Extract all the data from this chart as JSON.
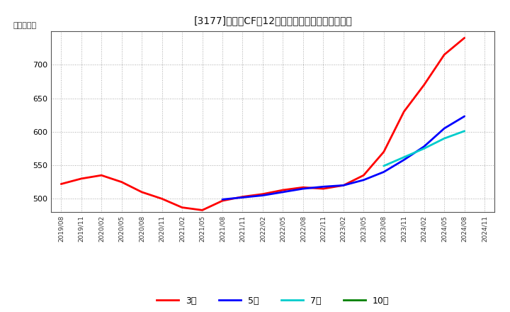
{
  "title": "[3177]　営業CFの12か月移動合計の平均値の推移",
  "ylabel": "（百万円）",
  "background_color": "#ffffff",
  "plot_bg_color": "#ffffff",
  "grid_color": "#aaaaaa",
  "ylim": [
    480,
    750
  ],
  "yticks": [
    500,
    550,
    600,
    650,
    700
  ],
  "series": {
    "3year": {
      "label": "3年",
      "color": "#ff0000",
      "dates": [
        "2019/08",
        "2019/11",
        "2020/02",
        "2020/05",
        "2020/08",
        "2020/11",
        "2021/02",
        "2021/05",
        "2021/08",
        "2021/11",
        "2022/02",
        "2022/05",
        "2022/08",
        "2022/11",
        "2023/02",
        "2023/05",
        "2023/08",
        "2023/11",
        "2024/02",
        "2024/05",
        "2024/08"
      ],
      "values": [
        522,
        530,
        535,
        525,
        510,
        500,
        487,
        483,
        497,
        503,
        507,
        513,
        517,
        515,
        520,
        535,
        570,
        630,
        670,
        715,
        740
      ]
    },
    "5year": {
      "label": "5年",
      "color": "#0000ff",
      "dates": [
        "2021/08",
        "2021/11",
        "2022/02",
        "2022/05",
        "2022/08",
        "2022/11",
        "2023/02",
        "2023/05",
        "2023/08",
        "2023/11",
        "2024/02",
        "2024/05",
        "2024/08"
      ],
      "values": [
        499,
        502,
        505,
        510,
        515,
        518,
        520,
        528,
        540,
        558,
        578,
        605,
        623
      ]
    },
    "7year": {
      "label": "7年",
      "color": "#00cccc",
      "dates": [
        "2023/08",
        "2023/11",
        "2024/02",
        "2024/05",
        "2024/08"
      ],
      "values": [
        549,
        562,
        575,
        590,
        601
      ]
    },
    "10year": {
      "label": "10年",
      "color": "#008000",
      "dates": [],
      "values": []
    }
  },
  "legend_items": [
    {
      "label": "3年",
      "color": "#ff0000"
    },
    {
      "label": "5年",
      "color": "#0000ff"
    },
    {
      "label": "7年",
      "color": "#00cccc"
    },
    {
      "label": "10年",
      "color": "#008000"
    }
  ],
  "xtick_labels": [
    "2019/08",
    "2019/11",
    "2020/02",
    "2020/05",
    "2020/08",
    "2020/11",
    "2021/02",
    "2021/05",
    "2021/08",
    "2021/11",
    "2022/02",
    "2022/05",
    "2022/08",
    "2022/11",
    "2023/02",
    "2023/05",
    "2023/08",
    "2023/11",
    "2024/02",
    "2024/05",
    "2024/08",
    "2024/11"
  ]
}
